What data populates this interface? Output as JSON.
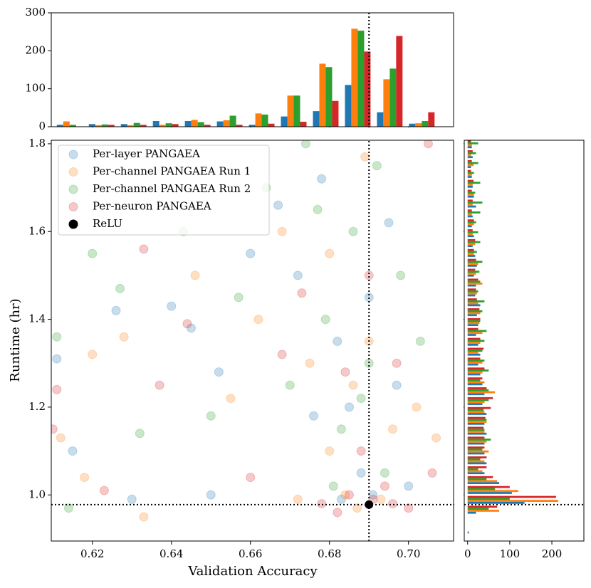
{
  "chart_data": [
    {
      "type": "scatter",
      "xlabel": "Validation Accuracy",
      "ylabel": "Runtime (hr)",
      "xlim": [
        0.6096,
        0.7114
      ],
      "ylim": [
        0.895,
        1.808
      ],
      "xticks": [
        0.62,
        0.64,
        0.66,
        0.68,
        {
          "value": 0.7,
          "label": "0.70"
        }
      ],
      "yticks": [
        {
          "value": 1,
          "label": "1.0"
        },
        1.2,
        1.4,
        1.6,
        1.8
      ],
      "legend": "upper left",
      "reference_lines": true,
      "series": [
        {
          "name": "Per-layer PANGAEA",
          "color": "#1f77b4",
          "alpha": 0.25,
          "x": [
            0.611,
            0.615,
            0.626,
            0.64,
            0.645,
            0.652,
            0.66,
            0.667,
            0.672,
            0.678,
            0.682,
            0.685,
            0.688,
            0.691,
            0.695,
            0.7,
            0.683,
            0.676,
            0.63,
            0.65,
            0.69,
            0.697
          ],
          "y": [
            1.31,
            1.1,
            1.42,
            1.43,
            1.38,
            1.28,
            1.55,
            1.66,
            1.5,
            1.72,
            1.35,
            1.2,
            1.05,
            1.0,
            1.62,
            1.02,
            0.99,
            1.18,
            0.99,
            1.0,
            1.45,
            1.25
          ]
        },
        {
          "name": "Per-channel PANGAEA Run 1",
          "color": "#ff7f0e",
          "alpha": 0.25,
          "x": [
            0.612,
            0.618,
            0.62,
            0.628,
            0.633,
            0.646,
            0.655,
            0.662,
            0.668,
            0.675,
            0.68,
            0.684,
            0.687,
            0.689,
            0.693,
            0.696,
            0.702,
            0.707,
            0.672,
            0.69,
            0.68,
            0.686
          ],
          "y": [
            1.13,
            1.04,
            1.32,
            1.36,
            0.95,
            1.5,
            1.22,
            1.4,
            1.6,
            1.3,
            1.1,
            1.0,
            0.97,
            1.77,
            0.99,
            1.15,
            1.2,
            1.13,
            0.99,
            1.35,
            1.55,
            1.25
          ]
        },
        {
          "name": "Per-channel PANGAEA Run 2",
          "color": "#2ca02c",
          "alpha": 0.25,
          "x": [
            0.611,
            0.614,
            0.62,
            0.627,
            0.632,
            0.643,
            0.65,
            0.657,
            0.664,
            0.67,
            0.674,
            0.679,
            0.683,
            0.686,
            0.69,
            0.694,
            0.698,
            0.703,
            0.688,
            0.681,
            0.677,
            0.692
          ],
          "y": [
            1.36,
            0.97,
            1.55,
            1.47,
            1.14,
            1.6,
            1.18,
            1.45,
            1.7,
            1.25,
            1.8,
            1.4,
            1.15,
            1.6,
            1.3,
            1.05,
            1.5,
            1.35,
            1.22,
            1.02,
            1.65,
            1.75
          ]
        },
        {
          "name": "Per-neuron PANGAEA",
          "color": "#d62728",
          "alpha": 0.25,
          "x": [
            0.61,
            0.611,
            0.623,
            0.633,
            0.637,
            0.644,
            0.66,
            0.668,
            0.673,
            0.678,
            0.682,
            0.685,
            0.688,
            0.691,
            0.694,
            0.697,
            0.7,
            0.706,
            0.705,
            0.69,
            0.684,
            0.696
          ],
          "y": [
            1.15,
            1.24,
            1.01,
            1.56,
            1.25,
            1.39,
            1.04,
            1.32,
            1.46,
            0.98,
            0.96,
            1.0,
            1.1,
            0.99,
            1.02,
            1.3,
            0.97,
            1.05,
            1.8,
            1.5,
            1.28,
            0.98
          ]
        },
        {
          "name": "ReLU",
          "color": "#000000",
          "alpha": 1,
          "x": [
            0.69
          ],
          "y": [
            0.978
          ]
        }
      ]
    },
    {
      "type": "histogram",
      "orientation": "vertical",
      "xlim": [
        0.6096,
        0.7114
      ],
      "ylim": [
        0,
        300
      ],
      "yticks": [
        0,
        100,
        200,
        300
      ],
      "bins": [
        0.6021,
        0.6102,
        0.6183,
        0.6264,
        0.6345,
        0.6426,
        0.6507,
        0.6588,
        0.6669,
        0.675,
        0.6831,
        0.6912,
        0.6993,
        0.7074
      ],
      "series": [
        {
          "color": "#1f77b4",
          "values": [
            0,
            5,
            7,
            7,
            15,
            15,
            14,
            5,
            27,
            41,
            110,
            38,
            8
          ]
        },
        {
          "color": "#ff7f0e",
          "values": [
            0,
            14,
            4,
            4,
            5,
            18,
            17,
            35,
            82,
            166,
            258,
            125,
            9
          ]
        },
        {
          "color": "#2ca02c",
          "values": [
            0,
            5,
            6,
            10,
            9,
            12,
            29,
            32,
            82,
            157,
            253,
            153,
            15
          ]
        },
        {
          "color": "#d62728",
          "values": [
            14,
            0,
            5,
            5,
            7,
            5,
            5,
            8,
            13,
            68,
            198,
            239,
            38
          ]
        }
      ]
    },
    {
      "type": "histogram",
      "orientation": "horizontal",
      "xlim": [
        -8,
        276
      ],
      "xticks": [
        0,
        100,
        200
      ],
      "ylim": [
        0.895,
        1.808
      ],
      "bins": [
        0.91,
        0.9325,
        0.955,
        0.9775,
        1.0,
        1.0225,
        1.045,
        1.0675,
        1.09,
        1.1125,
        1.135,
        1.1575,
        1.18,
        1.2025,
        1.225,
        1.2475,
        1.27,
        1.2925,
        1.315,
        1.3375,
        1.36,
        1.3825,
        1.405,
        1.4275,
        1.45,
        1.4725,
        1.495,
        1.5175,
        1.54,
        1.5625,
        1.585,
        1.6075,
        1.63,
        1.6525,
        1.675,
        1.6975,
        1.72,
        1.7425,
        1.765,
        1.7875,
        1.81
      ],
      "series": [
        {
          "color": "#1f77b4",
          "values": [
            3,
            0,
            20,
            135,
            105,
            75,
            40,
            45,
            40,
            40,
            45,
            40,
            45,
            35,
            40,
            35,
            30,
            25,
            30,
            25,
            20,
            25,
            22,
            30,
            18,
            20,
            15,
            22,
            18,
            12,
            15,
            10,
            12,
            20,
            15,
            12,
            10,
            8,
            12,
            10
          ]
        },
        {
          "color": "#ff7f0e",
          "values": [
            0,
            0,
            75,
            215,
            120,
            70,
            35,
            40,
            50,
            45,
            40,
            45,
            40,
            40,
            65,
            40,
            35,
            35,
            25,
            30,
            35,
            28,
            30,
            25,
            22,
            35,
            20,
            25,
            15,
            18,
            12,
            15,
            10,
            12,
            15,
            12,
            10,
            14,
            8,
            10
          ]
        },
        {
          "color": "#2ca02c",
          "values": [
            0,
            0,
            50,
            100,
            65,
            45,
            25,
            30,
            35,
            55,
            40,
            45,
            38,
            50,
            50,
            30,
            50,
            40,
            35,
            40,
            45,
            30,
            35,
            40,
            25,
            30,
            28,
            35,
            22,
            30,
            25,
            20,
            30,
            35,
            18,
            30,
            15,
            25,
            20,
            25
          ]
        },
        {
          "color": "#d62728",
          "values": [
            0,
            0,
            70,
            210,
            100,
            60,
            45,
            45,
            40,
            40,
            38,
            42,
            55,
            60,
            45,
            35,
            40,
            30,
            38,
            30,
            25,
            30,
            28,
            22,
            20,
            25,
            18,
            20,
            15,
            18,
            12,
            15,
            10,
            12,
            10,
            14,
            8,
            10,
            12,
            8
          ]
        }
      ]
    }
  ]
}
